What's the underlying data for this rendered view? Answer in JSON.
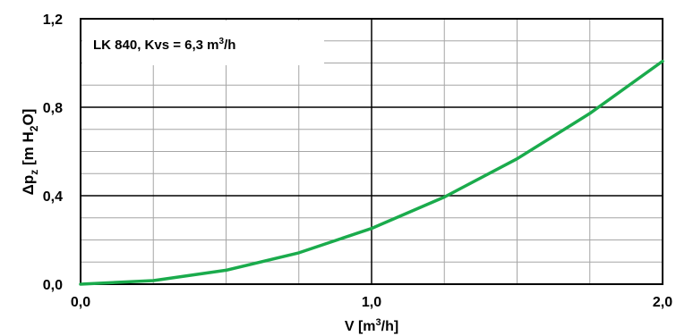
{
  "chart_data": {
    "type": "line",
    "annotation": {
      "prefix": "LK 840, Kvs = 6,3 m",
      "sup": "3",
      "suffix": "/h"
    },
    "xlabel": {
      "prefix": "V [m",
      "sup": "3",
      "suffix": "/h]"
    },
    "ylabel": {
      "delta": "Δp",
      "sub1": "z",
      "mid": " [m H",
      "sub2": "2",
      "suffix": "O]"
    },
    "x_ticks": [
      {
        "value": 0.0,
        "label": "0,0"
      },
      {
        "value": 1.0,
        "label": "1,0"
      },
      {
        "value": 2.0,
        "label": "2,0"
      }
    ],
    "y_ticks": [
      {
        "value": 0.0,
        "label": "0,0"
      },
      {
        "value": 0.4,
        "label": "0,4"
      },
      {
        "value": 0.8,
        "label": "0,8"
      },
      {
        "value": 1.2,
        "label": "1,2"
      }
    ],
    "xlim": [
      0,
      2.0
    ],
    "ylim": [
      0,
      1.2
    ],
    "grid": true,
    "line_color": "#1aab4c",
    "series": [
      {
        "x": [
          0.0,
          0.25,
          0.5,
          0.75,
          1.0,
          1.25,
          1.5,
          1.75,
          2.0
        ],
        "y": [
          0.0,
          0.016,
          0.063,
          0.142,
          0.252,
          0.394,
          0.567,
          0.772,
          1.008
        ]
      }
    ]
  }
}
